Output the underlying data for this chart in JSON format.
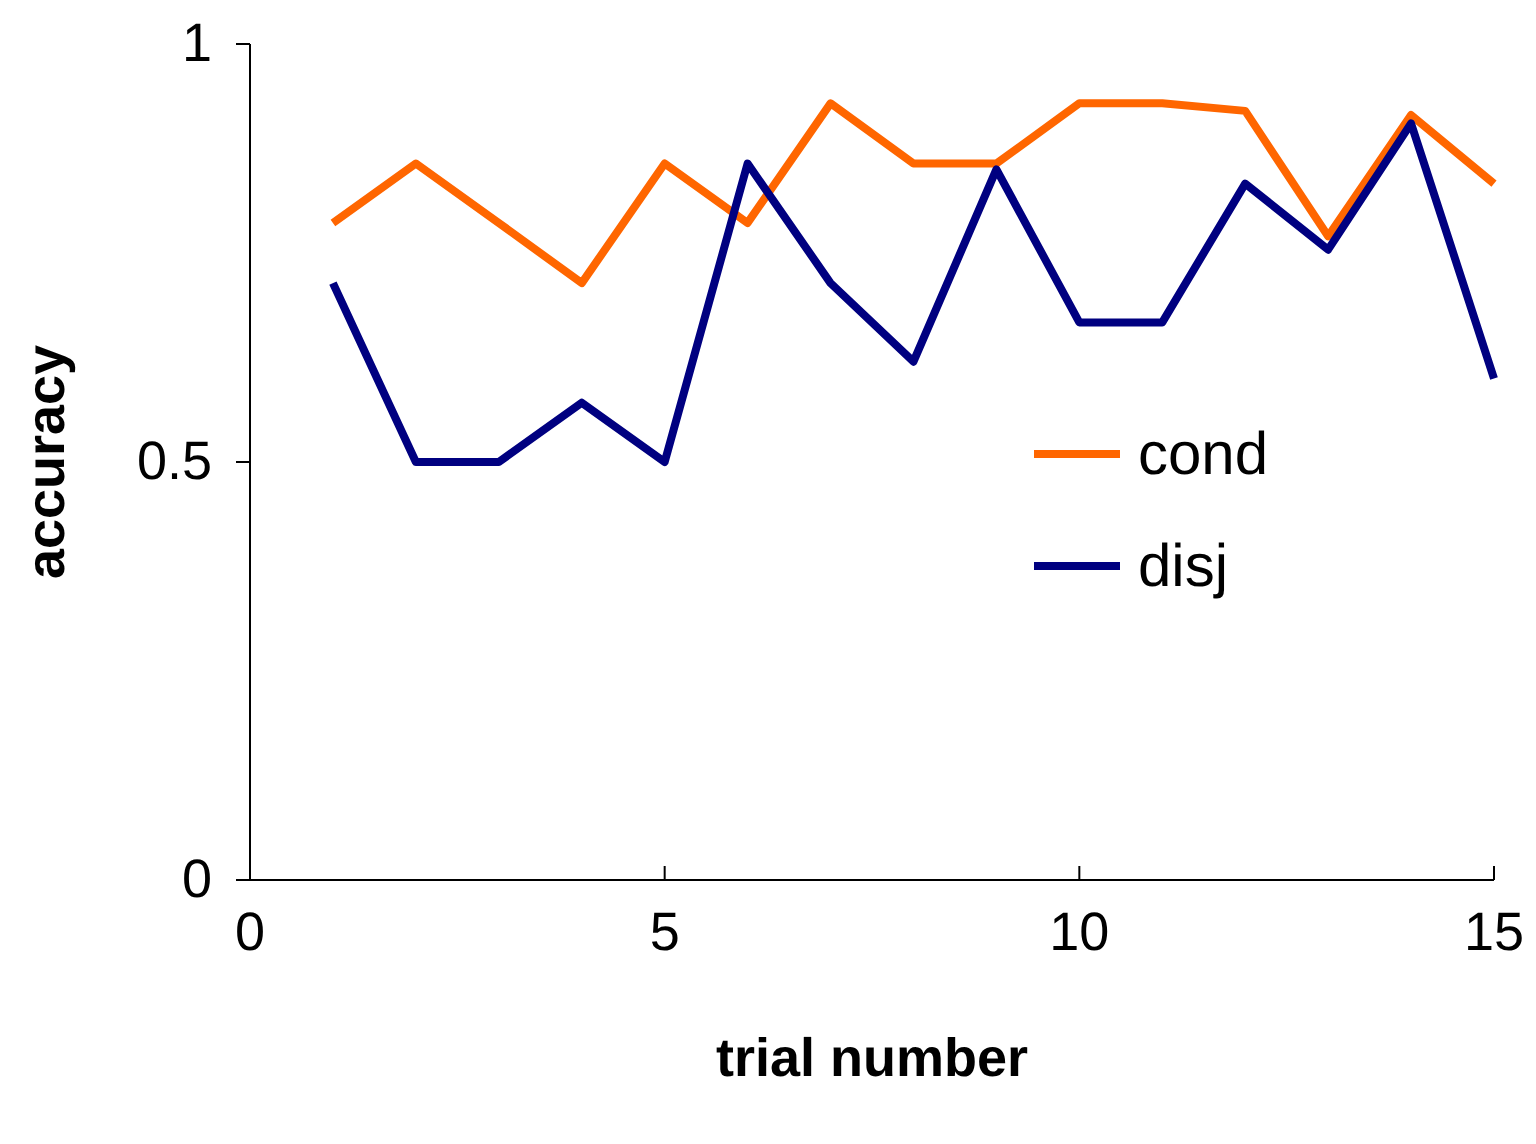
{
  "chart_data": {
    "type": "line",
    "xlabel": "trial number",
    "ylabel": "accuracy",
    "x": [
      1,
      2,
      3,
      4,
      5,
      6,
      7,
      8,
      9,
      10,
      11,
      12,
      13,
      14,
      15
    ],
    "xlim": [
      0,
      15
    ],
    "xticks": [
      0,
      5,
      10,
      15
    ],
    "ylim": [
      0,
      1
    ],
    "yticks": [
      0,
      0.5,
      1
    ],
    "legend": "right",
    "grid": false,
    "series": [
      {
        "name": "cond",
        "color": "#ff6600",
        "values": [
          0.786,
          0.857,
          0.786,
          0.714,
          0.857,
          0.786,
          0.929,
          0.857,
          0.857,
          0.929,
          0.929,
          0.92,
          0.77,
          0.915,
          0.833
        ]
      },
      {
        "name": "disj",
        "color": "#000080",
        "values": [
          0.714,
          0.5,
          0.5,
          0.571,
          0.5,
          0.857,
          0.714,
          0.62,
          0.85,
          0.667,
          0.667,
          0.833,
          0.754,
          0.905,
          0.6
        ]
      }
    ]
  }
}
